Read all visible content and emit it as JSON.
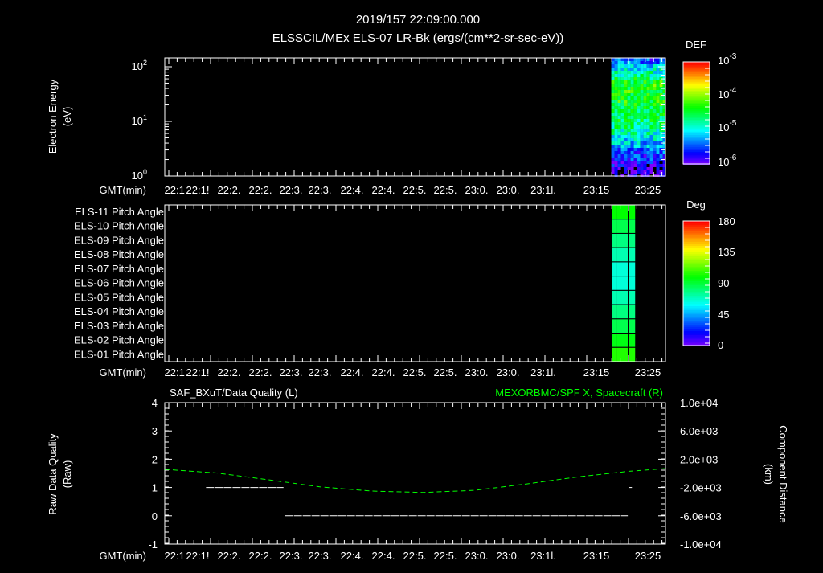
{
  "title": {
    "line1": "2019/157  22:09:00.000",
    "line2": "ELSSCIL/MEx ELS-07 LR-Bk   (ergs/(cm**2-sr-sec-eV))"
  },
  "time_axis": {
    "label": "GMT(min)",
    "ticks": [
      "22:1.",
      "22:1!",
      "22:2.",
      "22:2.",
      "22:3.",
      "22:3.",
      "22:4.",
      "22:4.",
      "22:5.",
      "22:5.",
      "23:0.",
      "23:0.",
      "23:1l.",
      "23:15",
      "23:25"
    ]
  },
  "chart_data": [
    {
      "type": "heatmap",
      "name": "electron-spectrogram",
      "ylabel_line1": "Electron Energy",
      "ylabel_line2": "(eV)",
      "yscale": "log",
      "ylim": [
        1,
        150
      ],
      "yticks": [
        {
          "base": "10",
          "exp": "0"
        },
        {
          "base": "10",
          "exp": "1"
        },
        {
          "base": "10",
          "exp": "2"
        }
      ],
      "xlim_min": [
        0,
        97
      ],
      "data_x_range_min": [
        86.5,
        97
      ],
      "colorbar": {
        "title": "DEF",
        "scale": "log",
        "range": [
          1e-06,
          0.001
        ],
        "ticks": [
          {
            "base": "10",
            "exp": "-3"
          },
          {
            "base": "10",
            "exp": "-4"
          },
          {
            "base": "10",
            "exp": "-5"
          },
          {
            "base": "10",
            "exp": "-6"
          }
        ]
      },
      "energy_profile_log_def": [
        {
          "energy_eV": 1.2,
          "log_def": -6.0
        },
        {
          "energy_eV": 2,
          "log_def": -5.7
        },
        {
          "energy_eV": 4,
          "log_def": -5.2
        },
        {
          "energy_eV": 8,
          "log_def": -4.7
        },
        {
          "energy_eV": 20,
          "log_def": -4.4
        },
        {
          "energy_eV": 50,
          "log_def": -4.3
        },
        {
          "energy_eV": 100,
          "log_def": -5.0
        },
        {
          "energy_eV": 140,
          "log_def": -5.5
        }
      ]
    },
    {
      "type": "heatmap",
      "name": "pitch-angle",
      "rows": [
        "ELS-11 Pitch Angle",
        "ELS-10 Pitch Angle",
        "ELS-09 Pitch Angle",
        "ELS-08 Pitch Angle",
        "ELS-07 Pitch Angle",
        "ELS-06 Pitch Angle",
        "ELS-05 Pitch Angle",
        "ELS-04 Pitch Angle",
        "ELS-03 Pitch Angle",
        "ELS-02 Pitch Angle",
        "ELS-01 Pitch Angle"
      ],
      "values_deg": [
        100,
        88,
        80,
        72,
        66,
        66,
        72,
        80,
        88,
        97,
        105
      ],
      "data_x_range_min": [
        86.5,
        91.2
      ],
      "colorbar": {
        "title": "Deg",
        "range": [
          0,
          180
        ],
        "ticks": [
          "180",
          "135",
          "90",
          "45",
          "0"
        ]
      }
    },
    {
      "type": "line",
      "name": "quality-and-position",
      "legend_left": "SAF_BXuT/Data Quality (L)",
      "legend_right": "MEXORBMC/SPF X, Spacecraft (R)",
      "ylabel_left_line1": "Raw Data Quality",
      "ylabel_left_line2": "(Raw)",
      "ylabel_right_line1": "Component Distance",
      "ylabel_right_line2": "(km)",
      "ylim_left": [
        -1,
        4
      ],
      "yticks_left": [
        "4",
        "3",
        "2",
        "1",
        "0",
        "-1"
      ],
      "ylim_right": [
        -10000,
        10000
      ],
      "yticks_right": [
        "1.0e+04",
        "6.0e+03",
        "2.0e+03",
        "-2.0e+03",
        "-6.0e+03",
        "-1.0e+04"
      ],
      "colors": {
        "left": "#ffffff",
        "right": "#00ff00"
      },
      "series": [
        {
          "name": "Data Quality",
          "segments": [
            {
              "x": [
                8,
                23
              ],
              "y": 1
            },
            {
              "x": [
                23.3,
                89.7
              ],
              "y": 0
            },
            {
              "x": [
                90,
                90.5
              ],
              "y": 1
            }
          ]
        },
        {
          "name": "SPF X",
          "x": [
            0,
            10,
            20,
            30,
            40,
            50,
            60,
            70,
            80,
            90,
            97
          ],
          "y": [
            570,
            60,
            -900,
            -1900,
            -2500,
            -2700,
            -2400,
            -1500,
            -500,
            300,
            680
          ]
        }
      ]
    }
  ]
}
